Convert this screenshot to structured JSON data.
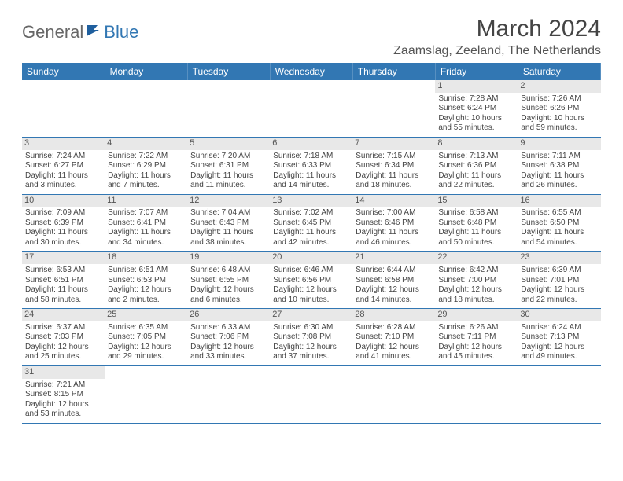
{
  "logo": {
    "text1": "General",
    "text2": "Blue"
  },
  "title": "March 2024",
  "location": "Zaamslag, Zeeland, The Netherlands",
  "colors": {
    "header_bg": "#3277b3",
    "header_text": "#ffffff",
    "daynum_bg": "#e8e8e8",
    "border": "#3277b3",
    "body_text": "#444444"
  },
  "weekdays": [
    "Sunday",
    "Monday",
    "Tuesday",
    "Wednesday",
    "Thursday",
    "Friday",
    "Saturday"
  ],
  "weeks": [
    [
      null,
      null,
      null,
      null,
      null,
      {
        "n": "1",
        "sunrise": "Sunrise: 7:28 AM",
        "sunset": "Sunset: 6:24 PM",
        "daylight": "Daylight: 10 hours and 55 minutes."
      },
      {
        "n": "2",
        "sunrise": "Sunrise: 7:26 AM",
        "sunset": "Sunset: 6:26 PM",
        "daylight": "Daylight: 10 hours and 59 minutes."
      }
    ],
    [
      {
        "n": "3",
        "sunrise": "Sunrise: 7:24 AM",
        "sunset": "Sunset: 6:27 PM",
        "daylight": "Daylight: 11 hours and 3 minutes."
      },
      {
        "n": "4",
        "sunrise": "Sunrise: 7:22 AM",
        "sunset": "Sunset: 6:29 PM",
        "daylight": "Daylight: 11 hours and 7 minutes."
      },
      {
        "n": "5",
        "sunrise": "Sunrise: 7:20 AM",
        "sunset": "Sunset: 6:31 PM",
        "daylight": "Daylight: 11 hours and 11 minutes."
      },
      {
        "n": "6",
        "sunrise": "Sunrise: 7:18 AM",
        "sunset": "Sunset: 6:33 PM",
        "daylight": "Daylight: 11 hours and 14 minutes."
      },
      {
        "n": "7",
        "sunrise": "Sunrise: 7:15 AM",
        "sunset": "Sunset: 6:34 PM",
        "daylight": "Daylight: 11 hours and 18 minutes."
      },
      {
        "n": "8",
        "sunrise": "Sunrise: 7:13 AM",
        "sunset": "Sunset: 6:36 PM",
        "daylight": "Daylight: 11 hours and 22 minutes."
      },
      {
        "n": "9",
        "sunrise": "Sunrise: 7:11 AM",
        "sunset": "Sunset: 6:38 PM",
        "daylight": "Daylight: 11 hours and 26 minutes."
      }
    ],
    [
      {
        "n": "10",
        "sunrise": "Sunrise: 7:09 AM",
        "sunset": "Sunset: 6:39 PM",
        "daylight": "Daylight: 11 hours and 30 minutes."
      },
      {
        "n": "11",
        "sunrise": "Sunrise: 7:07 AM",
        "sunset": "Sunset: 6:41 PM",
        "daylight": "Daylight: 11 hours and 34 minutes."
      },
      {
        "n": "12",
        "sunrise": "Sunrise: 7:04 AM",
        "sunset": "Sunset: 6:43 PM",
        "daylight": "Daylight: 11 hours and 38 minutes."
      },
      {
        "n": "13",
        "sunrise": "Sunrise: 7:02 AM",
        "sunset": "Sunset: 6:45 PM",
        "daylight": "Daylight: 11 hours and 42 minutes."
      },
      {
        "n": "14",
        "sunrise": "Sunrise: 7:00 AM",
        "sunset": "Sunset: 6:46 PM",
        "daylight": "Daylight: 11 hours and 46 minutes."
      },
      {
        "n": "15",
        "sunrise": "Sunrise: 6:58 AM",
        "sunset": "Sunset: 6:48 PM",
        "daylight": "Daylight: 11 hours and 50 minutes."
      },
      {
        "n": "16",
        "sunrise": "Sunrise: 6:55 AM",
        "sunset": "Sunset: 6:50 PM",
        "daylight": "Daylight: 11 hours and 54 minutes."
      }
    ],
    [
      {
        "n": "17",
        "sunrise": "Sunrise: 6:53 AM",
        "sunset": "Sunset: 6:51 PM",
        "daylight": "Daylight: 11 hours and 58 minutes."
      },
      {
        "n": "18",
        "sunrise": "Sunrise: 6:51 AM",
        "sunset": "Sunset: 6:53 PM",
        "daylight": "Daylight: 12 hours and 2 minutes."
      },
      {
        "n": "19",
        "sunrise": "Sunrise: 6:48 AM",
        "sunset": "Sunset: 6:55 PM",
        "daylight": "Daylight: 12 hours and 6 minutes."
      },
      {
        "n": "20",
        "sunrise": "Sunrise: 6:46 AM",
        "sunset": "Sunset: 6:56 PM",
        "daylight": "Daylight: 12 hours and 10 minutes."
      },
      {
        "n": "21",
        "sunrise": "Sunrise: 6:44 AM",
        "sunset": "Sunset: 6:58 PM",
        "daylight": "Daylight: 12 hours and 14 minutes."
      },
      {
        "n": "22",
        "sunrise": "Sunrise: 6:42 AM",
        "sunset": "Sunset: 7:00 PM",
        "daylight": "Daylight: 12 hours and 18 minutes."
      },
      {
        "n": "23",
        "sunrise": "Sunrise: 6:39 AM",
        "sunset": "Sunset: 7:01 PM",
        "daylight": "Daylight: 12 hours and 22 minutes."
      }
    ],
    [
      {
        "n": "24",
        "sunrise": "Sunrise: 6:37 AM",
        "sunset": "Sunset: 7:03 PM",
        "daylight": "Daylight: 12 hours and 25 minutes."
      },
      {
        "n": "25",
        "sunrise": "Sunrise: 6:35 AM",
        "sunset": "Sunset: 7:05 PM",
        "daylight": "Daylight: 12 hours and 29 minutes."
      },
      {
        "n": "26",
        "sunrise": "Sunrise: 6:33 AM",
        "sunset": "Sunset: 7:06 PM",
        "daylight": "Daylight: 12 hours and 33 minutes."
      },
      {
        "n": "27",
        "sunrise": "Sunrise: 6:30 AM",
        "sunset": "Sunset: 7:08 PM",
        "daylight": "Daylight: 12 hours and 37 minutes."
      },
      {
        "n": "28",
        "sunrise": "Sunrise: 6:28 AM",
        "sunset": "Sunset: 7:10 PM",
        "daylight": "Daylight: 12 hours and 41 minutes."
      },
      {
        "n": "29",
        "sunrise": "Sunrise: 6:26 AM",
        "sunset": "Sunset: 7:11 PM",
        "daylight": "Daylight: 12 hours and 45 minutes."
      },
      {
        "n": "30",
        "sunrise": "Sunrise: 6:24 AM",
        "sunset": "Sunset: 7:13 PM",
        "daylight": "Daylight: 12 hours and 49 minutes."
      }
    ],
    [
      {
        "n": "31",
        "sunrise": "Sunrise: 7:21 AM",
        "sunset": "Sunset: 8:15 PM",
        "daylight": "Daylight: 12 hours and 53 minutes."
      },
      null,
      null,
      null,
      null,
      null,
      null
    ]
  ]
}
